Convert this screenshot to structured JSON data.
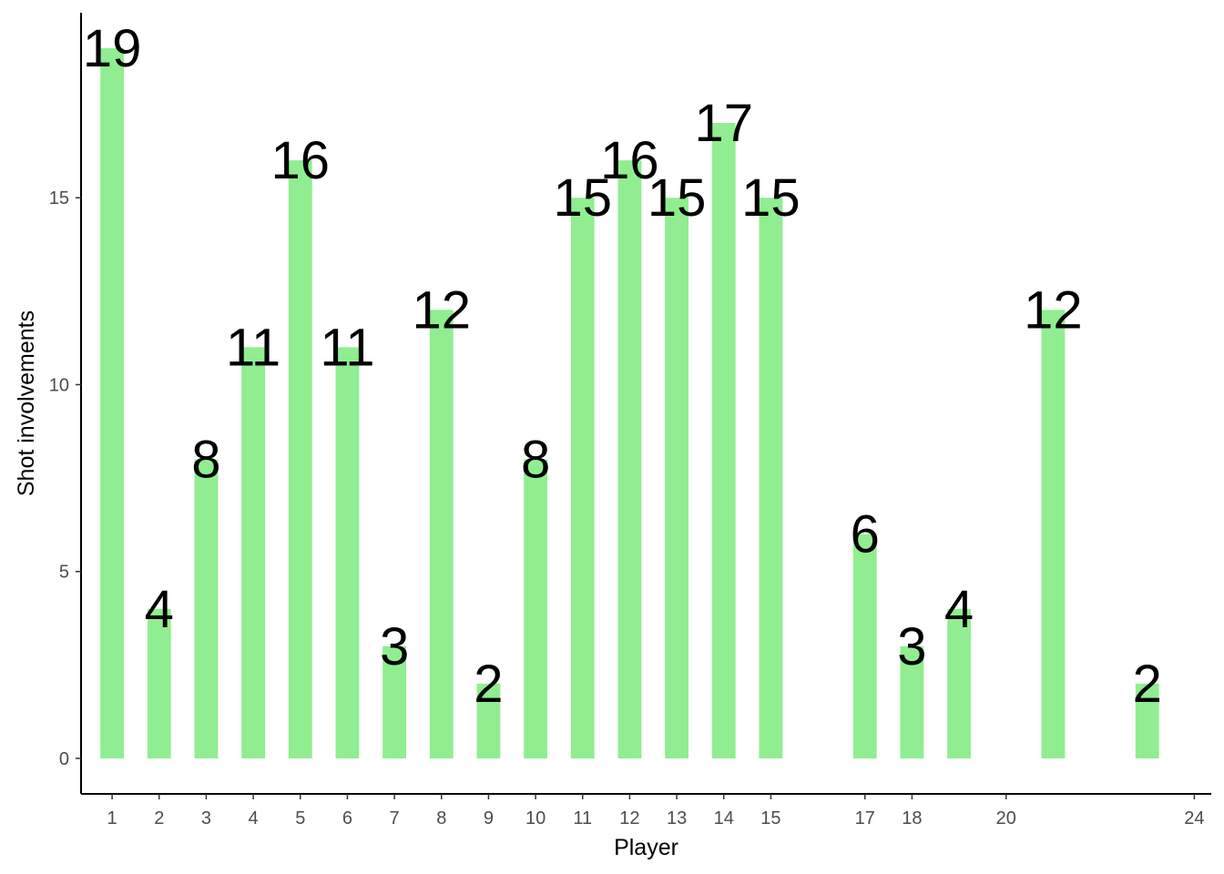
{
  "chart_data": {
    "type": "bar",
    "title": "",
    "xlabel": "Player",
    "ylabel": "Shot involvements",
    "x": [
      1,
      2,
      3,
      4,
      5,
      6,
      7,
      8,
      9,
      10,
      11,
      12,
      13,
      14,
      15,
      17,
      18,
      19,
      21,
      23
    ],
    "values": [
      19,
      4,
      8,
      11,
      16,
      11,
      3,
      12,
      2,
      8,
      15,
      16,
      15,
      17,
      15,
      6,
      3,
      4,
      12,
      2
    ],
    "x_ticks": [
      1,
      2,
      3,
      4,
      5,
      6,
      7,
      8,
      9,
      10,
      11,
      12,
      13,
      14,
      15,
      17,
      18,
      20,
      24
    ],
    "y_ticks": [
      0,
      5,
      10,
      15
    ],
    "xlim": [
      0.34,
      24.36
    ],
    "ylim": [
      -0.95,
      19.95
    ],
    "grid": false,
    "legend": "none",
    "colors": {
      "bar": "#90EE90",
      "axis": "#000000",
      "tick_label": "#4d4d4d",
      "text": "#000000"
    }
  }
}
